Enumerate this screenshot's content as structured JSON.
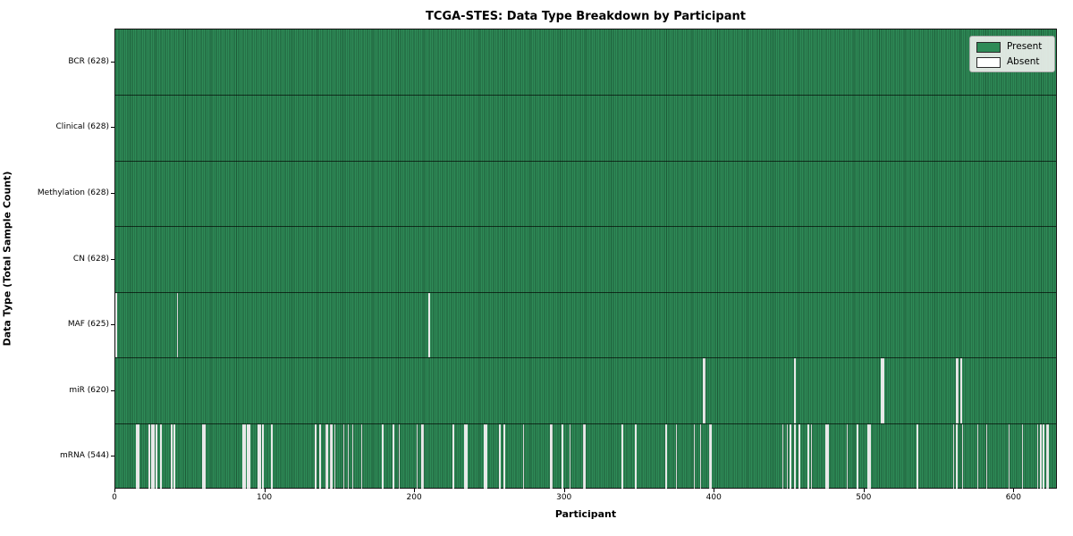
{
  "title": "TCGA-STES: Data Type Breakdown by Participant",
  "xlabel": "Participant",
  "ylabel": "Data Type (Total Sample Count)",
  "legend": {
    "entries": [
      {
        "label": "Present",
        "color": "#2e8b57"
      },
      {
        "label": "Absent",
        "color": "#ffffff"
      }
    ]
  },
  "colors": {
    "present": "#2e8b57",
    "present_edge": "#1d5b38",
    "absent": "#ffffff",
    "spine": "#111111",
    "legend_bg": "#ecefec"
  },
  "chart_data": {
    "type": "heatmap",
    "title": "TCGA-STES: Data Type Breakdown by Participant",
    "xlabel": "Participant",
    "ylabel": "Data Type (Total Sample Count)",
    "legend_entries": [
      "Present",
      "Absent"
    ],
    "legend_position": "upper right",
    "x_range": [
      0,
      629
    ],
    "x_ticks": [
      0,
      100,
      200,
      300,
      400,
      500,
      600
    ],
    "n_participants": 628,
    "rows": [
      {
        "label": "BCR (628)",
        "data_type": "BCR",
        "present_count": 628,
        "absent_at": []
      },
      {
        "label": "Clinical (628)",
        "data_type": "Clinical",
        "present_count": 628,
        "absent_at": []
      },
      {
        "label": "Methylation (628)",
        "data_type": "Methylation",
        "present_count": 628,
        "absent_at": []
      },
      {
        "label": "CN (628)",
        "data_type": "CN",
        "present_count": 628,
        "absent_at": []
      },
      {
        "label": "MAF (625)",
        "data_type": "MAF",
        "present_count": 625,
        "absent_at": [
          0,
          41,
          209
        ]
      },
      {
        "label": "miR (620)",
        "data_type": "miR",
        "present_count": 620,
        "absent_at": [
          392,
          393,
          453,
          511,
          512,
          561,
          562,
          564
        ]
      },
      {
        "label": "mRNA (544)",
        "data_type": "mRNA",
        "present_count": 544,
        "absent_at": [
          14,
          15,
          22,
          24,
          25,
          27,
          30,
          37,
          39,
          58,
          59,
          85,
          86,
          88,
          89,
          95,
          96,
          98,
          104,
          133,
          136,
          140,
          141,
          143,
          144,
          146,
          152,
          155,
          158,
          164,
          178,
          185,
          189,
          201,
          204,
          205,
          225,
          233,
          234,
          246,
          247,
          256,
          259,
          272,
          290,
          291,
          298,
          303,
          312,
          313,
          338,
          347,
          367,
          374,
          386,
          390,
          396,
          397,
          445,
          448,
          450,
          453,
          456,
          462,
          464,
          474,
          475,
          488,
          495,
          502,
          503,
          535,
          559,
          561,
          565,
          575,
          581,
          596,
          605,
          615,
          617,
          619,
          621,
          622
        ]
      }
    ]
  }
}
